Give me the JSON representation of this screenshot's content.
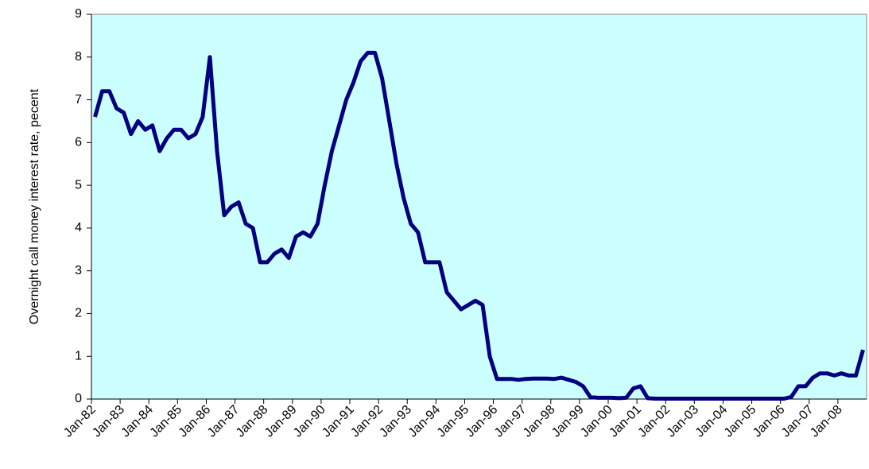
{
  "chart_data": {
    "type": "line",
    "y_label": "Overnight call money interest rate, pecent",
    "categories": [
      "Jan-82",
      null,
      null,
      null,
      "Jan-83",
      null,
      null,
      null,
      "Jan-84",
      null,
      null,
      null,
      "Jan-85",
      null,
      null,
      null,
      "Jan-86",
      null,
      null,
      null,
      "Jan-87",
      null,
      null,
      null,
      "Jan-88",
      null,
      null,
      null,
      "Jan-89",
      null,
      null,
      null,
      "Jan-90",
      null,
      null,
      null,
      "Jan-91",
      null,
      null,
      null,
      "Jan-92",
      null,
      null,
      null,
      "Jan-93",
      null,
      null,
      null,
      "Jan-94",
      null,
      null,
      null,
      "Jan-95",
      null,
      null,
      null,
      "Jan-96",
      null,
      null,
      null,
      "Jan-97",
      null,
      null,
      null,
      "Jan-98",
      null,
      null,
      null,
      "Jan-99",
      null,
      null,
      null,
      "Jan-00",
      null,
      null,
      null,
      "Jan-01",
      null,
      null,
      null,
      "Jan-02",
      null,
      null,
      null,
      "Jan-03",
      null,
      null,
      null,
      "Jan-04",
      null,
      null,
      null,
      "Jan-05",
      null,
      null,
      null,
      "Jan-06",
      null,
      null,
      null,
      "Jan-07",
      null,
      null,
      null,
      "Jan-08",
      null,
      null,
      null
    ],
    "values": [
      6.6,
      7.2,
      7.2,
      6.8,
      6.7,
      6.2,
      6.5,
      6.3,
      6.4,
      5.8,
      6.1,
      6.3,
      6.3,
      6.1,
      6.2,
      6.6,
      8.0,
      5.8,
      4.3,
      4.5,
      4.6,
      4.1,
      4.0,
      3.2,
      3.2,
      3.4,
      3.5,
      3.3,
      3.8,
      3.9,
      3.8,
      4.1,
      5.0,
      5.8,
      6.4,
      7.0,
      7.4,
      7.9,
      8.1,
      8.1,
      7.5,
      6.5,
      5.5,
      4.7,
      4.1,
      3.9,
      3.2,
      3.2,
      3.2,
      2.5,
      2.3,
      2.1,
      2.2,
      2.3,
      2.2,
      1.0,
      0.47,
      0.47,
      0.47,
      0.45,
      0.47,
      0.48,
      0.48,
      0.48,
      0.47,
      0.5,
      0.45,
      0.4,
      0.3,
      0.05,
      0.03,
      0.03,
      0.03,
      0.02,
      0.03,
      0.25,
      0.3,
      0.02,
      0.01,
      0.01,
      0.01,
      0.01,
      0.01,
      0.01,
      0.01,
      0.01,
      0.01,
      0.01,
      0.01,
      0.01,
      0.01,
      0.01,
      0.01,
      0.01,
      0.01,
      0.01,
      0.01,
      0.05,
      0.3,
      0.3,
      0.5,
      0.6,
      0.6,
      0.55,
      0.6,
      0.55,
      0.55,
      1.15
    ],
    "color": "#000080",
    "background": "#ccffff",
    "ylim": [
      0,
      9
    ],
    "yticks": [
      0,
      1,
      2,
      3,
      4,
      5,
      6,
      7,
      8,
      9
    ]
  }
}
